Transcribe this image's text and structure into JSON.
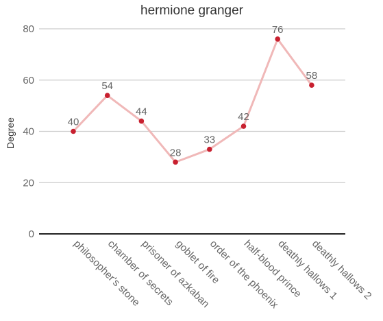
{
  "chart_data": {
    "type": "line",
    "title": "hermione granger",
    "xlabel": "",
    "ylabel": "Degree",
    "categories": [
      "philosopher's stone",
      "chamber of secrets",
      "prisoner of azkaban",
      "goblet of fire",
      "order of the phoenix",
      "half-blood prince",
      "deathly hallows 1",
      "deathly hallows 2"
    ],
    "series": [
      {
        "values": [
          40,
          54,
          44,
          28,
          33,
          42,
          76,
          58
        ],
        "line_color": "#f0b8b8",
        "point_color": "#c8202f"
      }
    ],
    "ylim": [
      0,
      80
    ],
    "yticks": [
      0,
      20,
      40,
      60,
      80
    ],
    "grid": true,
    "legend": "none",
    "data_labels": true
  }
}
